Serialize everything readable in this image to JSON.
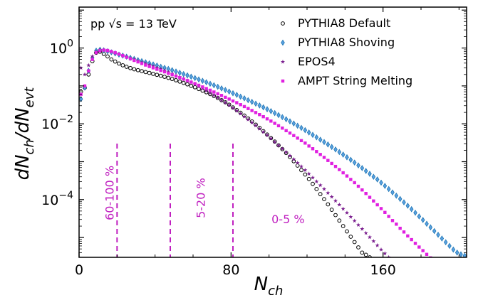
{
  "chart_data": {
    "type": "scatter",
    "title": "",
    "energy_label": "pp √s = 13 TeV",
    "xlabel": "N_ch",
    "ylabel": "dN_ch/dN_evt",
    "xlim": [
      0,
      204
    ],
    "ylim": [
      3e-06,
      12
    ],
    "y_scale": "log",
    "x_ticks": [
      {
        "value": 0,
        "label": "0"
      },
      {
        "value": 80,
        "label": "80"
      },
      {
        "value": 160,
        "label": "160"
      }
    ],
    "y_ticks": [
      {
        "value": 1,
        "base": "10",
        "exp": "0"
      },
      {
        "value": 0.01,
        "base": "10",
        "exp": "−2"
      },
      {
        "value": 0.0001,
        "base": "10",
        "exp": "−4"
      }
    ],
    "legend_position": "top-right",
    "centrality_cuts": [
      {
        "x": 20,
        "label": "60-100 %",
        "label_x": 16,
        "label_y": 0.00015,
        "vertical": true
      },
      {
        "x": 48,
        "label": "5-20 %",
        "label_x": 64,
        "label_y": 0.00011,
        "vertical": true
      },
      {
        "x": 81,
        "label": "0-5 %",
        "label_x": 110,
        "label_y": 2.4e-05,
        "vertical": false
      }
    ],
    "series": [
      {
        "name": "PYTHIA8 Default",
        "marker": "circle",
        "color": "#000000",
        "x": [
          1,
          3,
          5,
          7,
          9,
          11,
          13,
          15,
          17,
          19,
          21,
          23,
          25,
          27,
          29,
          31,
          33,
          35,
          37,
          39,
          41,
          43,
          45,
          47,
          49,
          51,
          53,
          55,
          57,
          59,
          61,
          63,
          65,
          67,
          69,
          71,
          73,
          75,
          77,
          79,
          81,
          83,
          85,
          87,
          89,
          91,
          93,
          95,
          97,
          99,
          101,
          103,
          105,
          107,
          109,
          111,
          113,
          115,
          117,
          119,
          121,
          123,
          125,
          127,
          129,
          131,
          133,
          135,
          137,
          139,
          141,
          143,
          145,
          147,
          149,
          151,
          153,
          155,
          157,
          159,
          161,
          163,
          165,
          167,
          169,
          171,
          173,
          175,
          177,
          179,
          181,
          183,
          185
        ],
        "y": [
          0.07,
          0.09,
          0.2,
          0.45,
          0.75,
          0.8,
          0.7,
          0.6,
          0.5,
          0.44,
          0.39,
          0.35,
          0.32,
          0.295,
          0.275,
          0.26,
          0.245,
          0.232,
          0.22,
          0.208,
          0.196,
          0.185,
          0.174,
          0.163,
          0.152,
          0.141,
          0.13,
          0.12,
          0.11,
          0.1,
          0.092,
          0.083,
          0.075,
          0.068,
          0.061,
          0.054,
          0.048,
          0.042,
          0.037,
          0.032,
          0.027,
          0.023,
          0.0195,
          0.0165,
          0.0138,
          0.0115,
          0.0095,
          0.0078,
          0.0064,
          0.0052,
          0.0042,
          0.0034,
          0.0027,
          0.00215,
          0.0017,
          0.00133,
          0.00103,
          0.00079,
          0.0006,
          0.00046,
          0.00035,
          0.00026,
          0.00019,
          0.00014,
          0.000103,
          7.5e-05,
          5.4e-05,
          3.9e-05,
          2.8e-05,
          2e-05,
          1.45e-05,
          1.05e-05,
          7.6e-06,
          5.5e-06,
          4e-06,
          3.5e-06,
          3e-06,
          2.5e-06,
          2e-06,
          2e-06,
          2e-06,
          2e-06,
          2e-06,
          2e-06,
          2e-06,
          2e-06,
          2e-06,
          2e-06,
          2e-06,
          2e-06,
          2e-06,
          2e-06,
          2e-06
        ]
      },
      {
        "name": "PYTHIA8 Shoving",
        "marker": "diamond",
        "color": "#1f77b4",
        "x": [
          1,
          3,
          5,
          7,
          9,
          11,
          13,
          15,
          17,
          19,
          21,
          23,
          25,
          27,
          29,
          31,
          33,
          35,
          37,
          39,
          41,
          43,
          45,
          47,
          49,
          51,
          53,
          55,
          57,
          59,
          61,
          63,
          65,
          67,
          69,
          71,
          73,
          75,
          77,
          79,
          81,
          83,
          85,
          87,
          89,
          91,
          93,
          95,
          97,
          99,
          101,
          103,
          105,
          107,
          109,
          111,
          113,
          115,
          117,
          119,
          121,
          123,
          125,
          127,
          129,
          131,
          133,
          135,
          137,
          139,
          141,
          143,
          145,
          147,
          149,
          151,
          153,
          155,
          157,
          159,
          161,
          163,
          165,
          167,
          169,
          171,
          173,
          175,
          177,
          179,
          181,
          183,
          185,
          187,
          189,
          191,
          193,
          195,
          197,
          199,
          201,
          203
        ],
        "y": [
          0.045,
          0.09,
          0.25,
          0.55,
          0.85,
          0.9,
          0.87,
          0.82,
          0.77,
          0.72,
          0.67,
          0.63,
          0.59,
          0.55,
          0.515,
          0.48,
          0.45,
          0.42,
          0.395,
          0.37,
          0.345,
          0.32,
          0.3,
          0.28,
          0.26,
          0.24,
          0.222,
          0.205,
          0.19,
          0.175,
          0.161,
          0.148,
          0.136,
          0.125,
          0.114,
          0.104,
          0.095,
          0.086,
          0.078,
          0.071,
          0.064,
          0.058,
          0.052,
          0.047,
          0.042,
          0.038,
          0.034,
          0.0305,
          0.0272,
          0.0243,
          0.0216,
          0.0192,
          0.017,
          0.015,
          0.0132,
          0.0116,
          0.0102,
          0.0089,
          0.0078,
          0.0068,
          0.0059,
          0.0051,
          0.0044,
          0.0038,
          0.0033,
          0.00285,
          0.00245,
          0.0021,
          0.0018,
          0.00154,
          0.00131,
          0.00112,
          0.00095,
          0.0008,
          0.00068,
          0.00057,
          0.00048,
          0.0004,
          0.00034,
          0.00028,
          0.00023,
          0.00019,
          0.000155,
          0.000127,
          0.000104,
          8.5e-05,
          6.9e-05,
          5.6e-05,
          4.5e-05,
          3.6e-05,
          2.9e-05,
          2.3e-05,
          1.85e-05,
          1.48e-05,
          1.18e-05,
          9.4e-06,
          7.5e-06,
          6e-06,
          4.8e-06,
          4e-06,
          3.6e-06,
          3.3e-06
        ]
      },
      {
        "name": "EPOS4",
        "marker": "star",
        "color": "#7b1f8f",
        "x": [
          1,
          3,
          5,
          7,
          9,
          11,
          13,
          15,
          17,
          19,
          21,
          23,
          25,
          27,
          29,
          31,
          33,
          35,
          37,
          39,
          41,
          43,
          45,
          47,
          49,
          51,
          53,
          55,
          57,
          59,
          61,
          63,
          65,
          67,
          69,
          71,
          73,
          75,
          77,
          79,
          81,
          83,
          85,
          87,
          89,
          91,
          93,
          95,
          97,
          99,
          101,
          103,
          105,
          107,
          109,
          111,
          113,
          115,
          117,
          119,
          121,
          123,
          125,
          127,
          129,
          131,
          133,
          135,
          137,
          139,
          141,
          143,
          145,
          147,
          149,
          151,
          153,
          155,
          157,
          159,
          161,
          163,
          165,
          167,
          169,
          171,
          173,
          175,
          177,
          179,
          181,
          183,
          185
        ],
        "y": [
          0.3,
          0.2,
          0.35,
          0.6,
          0.8,
          0.9,
          0.88,
          0.84,
          0.79,
          0.73,
          0.68,
          0.63,
          0.585,
          0.54,
          0.5,
          0.46,
          0.42,
          0.39,
          0.36,
          0.33,
          0.305,
          0.28,
          0.255,
          0.232,
          0.21,
          0.19,
          0.172,
          0.155,
          0.139,
          0.124,
          0.11,
          0.097,
          0.085,
          0.075,
          0.065,
          0.057,
          0.049,
          0.042,
          0.036,
          0.031,
          0.026,
          0.022,
          0.0185,
          0.0155,
          0.013,
          0.0108,
          0.009,
          0.0074,
          0.0061,
          0.005,
          0.0041,
          0.0033,
          0.0027,
          0.0022,
          0.00178,
          0.00144,
          0.00116,
          0.00093,
          0.00075,
          0.0006,
          0.00048,
          0.00038,
          0.0003,
          0.00024,
          0.00019,
          0.00015,
          0.000118,
          9.3e-05,
          7.3e-05,
          5.7e-05,
          4.5e-05,
          3.5e-05,
          2.75e-05,
          2.15e-05,
          1.68e-05,
          1.31e-05,
          1.02e-05,
          8e-06,
          6.2e-06,
          4.8e-06,
          3.8e-06,
          3e-06,
          2.5e-06,
          2.2e-06,
          2e-06,
          2e-06,
          2e-06,
          2e-06,
          2e-06,
          2e-06,
          2e-06,
          2e-06,
          2e-06
        ]
      },
      {
        "name": "AMPT String Melting",
        "marker": "square",
        "color": "#e020e0",
        "x": [
          1,
          3,
          5,
          7,
          9,
          11,
          13,
          15,
          17,
          19,
          21,
          23,
          25,
          27,
          29,
          31,
          33,
          35,
          37,
          39,
          41,
          43,
          45,
          47,
          49,
          51,
          53,
          55,
          57,
          59,
          61,
          63,
          65,
          67,
          69,
          71,
          73,
          75,
          77,
          79,
          81,
          83,
          85,
          87,
          89,
          91,
          93,
          95,
          97,
          99,
          101,
          103,
          105,
          107,
          109,
          111,
          113,
          115,
          117,
          119,
          121,
          123,
          125,
          127,
          129,
          131,
          133,
          135,
          137,
          139,
          141,
          143,
          145,
          147,
          149,
          151,
          153,
          155,
          157,
          159,
          161,
          163,
          165,
          167,
          169,
          171,
          173,
          175,
          177,
          179,
          181,
          183,
          185,
          187,
          189
        ],
        "y": [
          0.06,
          0.1,
          0.25,
          0.5,
          0.75,
          0.85,
          0.88,
          0.86,
          0.81,
          0.75,
          0.69,
          0.63,
          0.57,
          0.52,
          0.47,
          0.43,
          0.39,
          0.355,
          0.325,
          0.3,
          0.275,
          0.255,
          0.235,
          0.215,
          0.197,
          0.18,
          0.165,
          0.151,
          0.138,
          0.126,
          0.115,
          0.104,
          0.094,
          0.085,
          0.077,
          0.069,
          0.062,
          0.056,
          0.05,
          0.045,
          0.04,
          0.036,
          0.032,
          0.0285,
          0.0253,
          0.0224,
          0.0198,
          0.0175,
          0.0154,
          0.0135,
          0.0118,
          0.0103,
          0.0089,
          0.0077,
          0.0066,
          0.0057,
          0.0049,
          0.0042,
          0.0036,
          0.0031,
          0.0026,
          0.0022,
          0.00185,
          0.00155,
          0.0013,
          0.00108,
          0.0009,
          0.00075,
          0.00062,
          0.00051,
          0.00042,
          0.00034,
          0.00028,
          0.000225,
          0.00018,
          0.000145,
          0.000115,
          9.2e-05,
          7.3e-05,
          5.8e-05,
          4.6e-05,
          3.6e-05,
          2.8e-05,
          2.25e-05,
          1.75e-05,
          1.4e-05,
          1.1e-05,
          8.8e-06,
          7e-06,
          5.6e-06,
          4.5e-06,
          3.6e-06,
          2.9e-06,
          2.3e-06,
          2e-06
        ]
      }
    ]
  }
}
